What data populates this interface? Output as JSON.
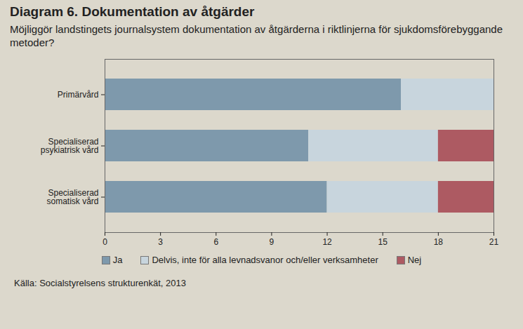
{
  "chart_data": {
    "type": "bar",
    "orientation": "horizontal",
    "stacked": true,
    "title": "Diagram 6. Dokumentation av åtgärder",
    "subtitle": "Möjliggör landstingets journalsystem dokumentation av åtgärderna i riktlinjerna för sjukdomsförebyggande metoder?",
    "source": "Källa: Socialstyrelsens strukturenkät, 2013",
    "categories": [
      "Primärvård",
      "Specialiserad psykiatrisk vård",
      "Specialiserad somatisk vård"
    ],
    "series": [
      {
        "name": "Ja",
        "color": "#7e99ac",
        "values": [
          16,
          11,
          12
        ]
      },
      {
        "name": "Delvis, inte för alla levnadsvanor och/eller verksamheter",
        "color": "#c8d5dd",
        "values": [
          5,
          7,
          6
        ]
      },
      {
        "name": "Nej",
        "color": "#ad5a62",
        "values": [
          0,
          3,
          3
        ]
      }
    ],
    "xlim": [
      0,
      21
    ],
    "xticks": [
      0,
      3,
      6,
      9,
      12,
      15,
      18,
      21
    ],
    "grid": false,
    "legend": "bottom"
  }
}
